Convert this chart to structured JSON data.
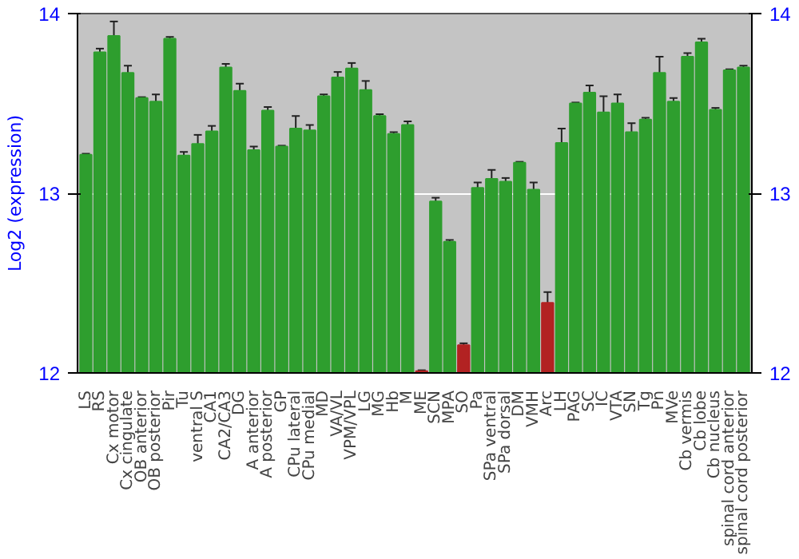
{
  "chart_data": {
    "type": "bar",
    "ylabel": "Log2 (expression)",
    "categories": [
      "LS",
      "RS",
      "Cx motor",
      "Cx cingulate",
      "OB anterior",
      "OB posterior",
      "Pir",
      "Tu",
      "ventral S",
      "CA1",
      "CA2/CA3",
      "DG",
      "A anterior",
      "A posterior",
      "GP",
      "CPu lateral",
      "CPu medial",
      "MD",
      "VA/VL",
      "VPM/VPL",
      "LG",
      "MG",
      "Hb",
      "M",
      "ME",
      "SCN",
      "MPA",
      "SO",
      "Pa",
      "SPa ventral",
      "SPa dorsal",
      "DM",
      "VMH",
      "Arc",
      "LH",
      "PAG",
      "SC",
      "IC",
      "VTA",
      "SN",
      "Tg",
      "Pn",
      "MVe",
      "Cb vermis",
      "Cb lobe",
      "Cb nucleus",
      "spinal cord anterior",
      "spinal cord posterior"
    ],
    "values": [
      13.215,
      13.785,
      13.876,
      13.67,
      13.53,
      13.51,
      13.86,
      13.21,
      13.275,
      13.345,
      13.7,
      13.57,
      13.24,
      13.46,
      13.26,
      13.36,
      13.35,
      13.54,
      13.645,
      13.695,
      13.575,
      13.43,
      13.33,
      13.38,
      12.01,
      12.955,
      12.73,
      12.155,
      13.03,
      13.08,
      13.065,
      13.17,
      13.02,
      12.39,
      13.28,
      13.5,
      13.56,
      13.45,
      13.5,
      13.34,
      13.41,
      13.67,
      13.51,
      13.76,
      13.84,
      13.465,
      13.685,
      13.7
    ],
    "errors": [
      0.005,
      0.02,
      0.08,
      0.04,
      0.005,
      0.04,
      0.01,
      0.02,
      0.05,
      0.03,
      0.02,
      0.04,
      0.02,
      0.02,
      0.005,
      0.07,
      0.03,
      0.01,
      0.03,
      0.03,
      0.05,
      0.01,
      0.01,
      0.02,
      0.005,
      0.02,
      0.01,
      0.01,
      0.03,
      0.05,
      0.02,
      0.005,
      0.04,
      0.06,
      0.08,
      0.005,
      0.04,
      0.09,
      0.05,
      0.05,
      0.01,
      0.09,
      0.02,
      0.02,
      0.02,
      0.01,
      0.005,
      0.01
    ],
    "colors": [
      "#2e9e2e",
      "#2e9e2e",
      "#2e9e2e",
      "#2e9e2e",
      "#2e9e2e",
      "#2e9e2e",
      "#2e9e2e",
      "#2e9e2e",
      "#2e9e2e",
      "#2e9e2e",
      "#2e9e2e",
      "#2e9e2e",
      "#2e9e2e",
      "#2e9e2e",
      "#2e9e2e",
      "#2e9e2e",
      "#2e9e2e",
      "#2e9e2e",
      "#2e9e2e",
      "#2e9e2e",
      "#2e9e2e",
      "#2e9e2e",
      "#2e9e2e",
      "#2e9e2e",
      "#b22222",
      "#2e9e2e",
      "#2e9e2e",
      "#b22222",
      "#2e9e2e",
      "#2e9e2e",
      "#2e9e2e",
      "#2e9e2e",
      "#2e9e2e",
      "#b22222",
      "#2e9e2e",
      "#2e9e2e",
      "#2e9e2e",
      "#2e9e2e",
      "#2e9e2e",
      "#2e9e2e",
      "#2e9e2e",
      "#2e9e2e",
      "#2e9e2e",
      "#2e9e2e",
      "#2e9e2e",
      "#2e9e2e",
      "#2e9e2e",
      "#2e9e2e"
    ],
    "ylim": [
      12,
      14
    ],
    "yticks": [
      12,
      13,
      14
    ],
    "y2lim": [
      12,
      14
    ],
    "y2ticks": [
      12,
      13,
      14
    ],
    "grid": "y"
  }
}
